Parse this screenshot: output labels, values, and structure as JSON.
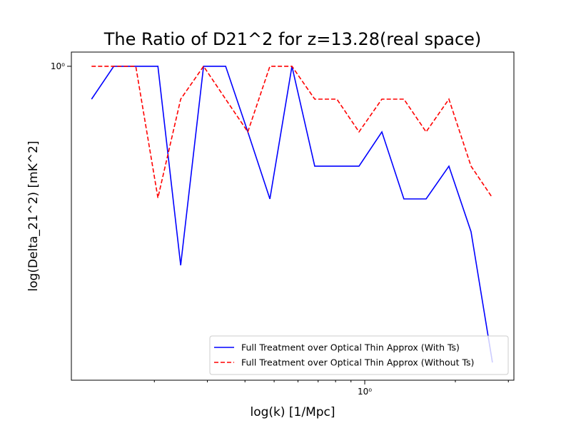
{
  "chart_data": {
    "type": "line",
    "title": "The Ratio of D21^2 for z=13.28(real space)",
    "xlabel": "log(k) [1/Mpc]",
    "ylabel": "log(Delta_21^2) [mK^2]",
    "xscale": "log",
    "yscale": "log",
    "x": [
      0.1237,
      0.1466,
      0.1735,
      0.2055,
      0.2446,
      0.2914,
      0.345,
      0.4088,
      0.484,
      0.573,
      0.682,
      0.808,
      0.957,
      1.14,
      1.349,
      1.599,
      1.904,
      2.255,
      2.656
    ],
    "series": [
      {
        "name": "Full Treatment over Optical Thin Approx (With Ts)",
        "color": "#0000ff",
        "dash": "solid",
        "values": [
          0.809,
          1,
          1,
          1,
          0.277,
          1,
          1,
          0.655,
          0.425,
          1,
          0.525,
          0.525,
          0.525,
          0.655,
          0.425,
          0.425,
          0.525,
          0.344,
          0.148
        ]
      },
      {
        "name": "Full Treatment over Optical Thin Approx (Without Ts)",
        "color": "#ff0000",
        "dash": "dashed",
        "values": [
          1,
          1,
          1,
          0.428,
          0.809,
          1,
          0.809,
          0.655,
          1,
          1,
          0.809,
          0.809,
          0.655,
          0.809,
          0.809,
          0.655,
          0.809,
          0.525,
          0.428
        ]
      }
    ],
    "xlim": [
      0.106,
      3.13
    ],
    "ylim": [
      0.132,
      1.096
    ],
    "xticks": [
      {
        "value": 1,
        "label": "10⁰"
      }
    ],
    "xminorticks": [
      0.2,
      0.3,
      0.4,
      0.5,
      0.6,
      0.7,
      0.8,
      0.9,
      2,
      3
    ],
    "yticks": [
      {
        "value": 1,
        "label": "10⁰"
      }
    ],
    "legend": "lower right"
  }
}
